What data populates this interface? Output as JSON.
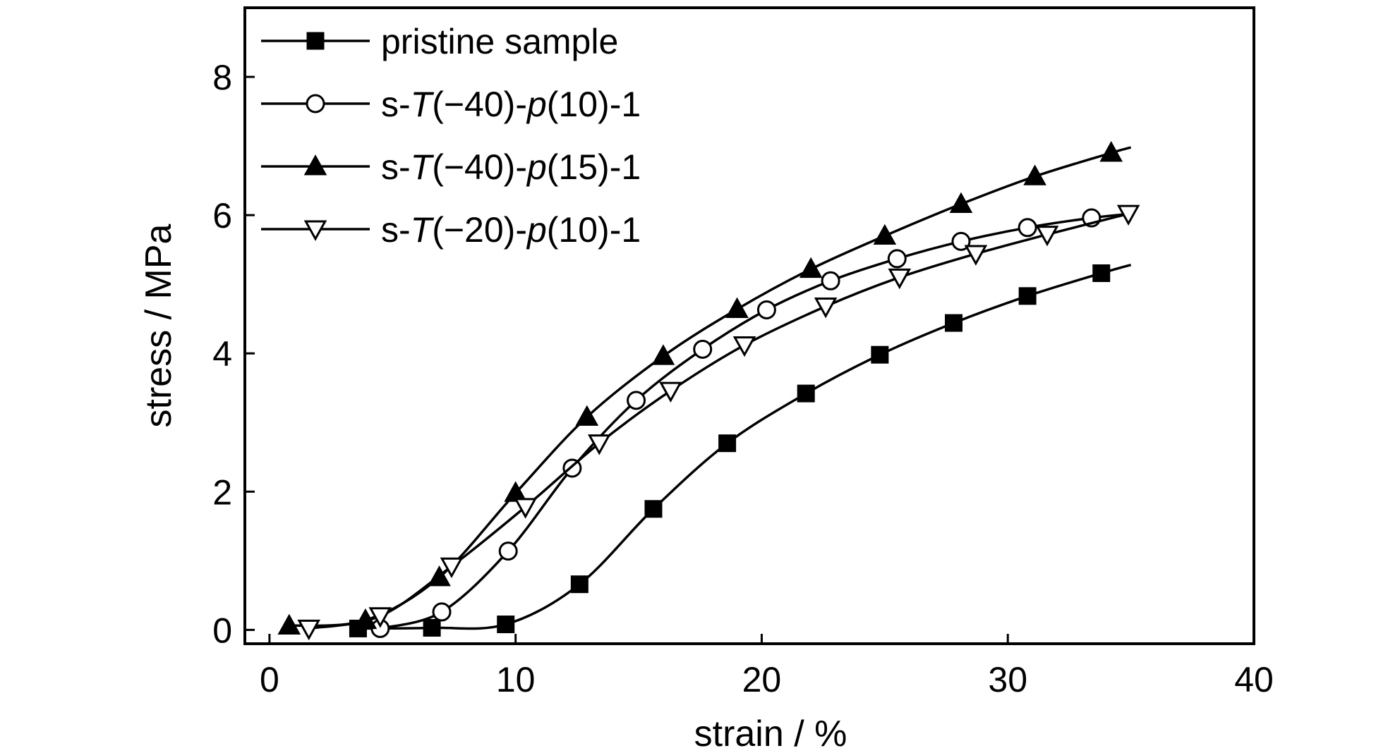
{
  "chart_data": {
    "type": "line",
    "title": "",
    "xlabel": "strain / %",
    "ylabel": "stress / MPa",
    "xlim": [
      -1,
      40
    ],
    "ylim": [
      -0.2,
      9.0
    ],
    "xticks": [
      0,
      10,
      20,
      30,
      40
    ],
    "yticks": [
      0,
      2,
      4,
      6,
      8
    ],
    "x_tick_labels": [
      "0",
      "10",
      "20",
      "30",
      "40"
    ],
    "y_tick_labels": [
      "0",
      "2",
      "4",
      "6",
      "8"
    ],
    "grid": false,
    "legend_position": "top-left",
    "series": [
      {
        "name": "pristine sample",
        "legend_parts": [
          {
            "text": "pristine sample",
            "italic": false
          }
        ],
        "marker": "square-filled",
        "x": [
          3.6,
          6.6,
          9.6,
          12.6,
          15.6,
          18.6,
          21.8,
          24.8,
          27.8,
          30.8,
          33.8,
          35.0
        ],
        "y": [
          0.02,
          0.03,
          0.08,
          0.66,
          1.75,
          2.7,
          3.42,
          3.98,
          4.44,
          4.83,
          5.16,
          5.28
        ],
        "marker_x": [
          3.6,
          6.6,
          9.6,
          12.6,
          15.6,
          18.6,
          21.8,
          24.8,
          27.8,
          30.8,
          33.8
        ],
        "marker_y": [
          0.02,
          0.03,
          0.08,
          0.66,
          1.75,
          2.7,
          3.42,
          3.98,
          4.44,
          4.83,
          5.16
        ]
      },
      {
        "name": "s-T(−40)-p(10)-1",
        "legend_parts": [
          {
            "text": "s-",
            "italic": false
          },
          {
            "text": "T",
            "italic": true
          },
          {
            "text": "(−40)-",
            "italic": false
          },
          {
            "text": "p",
            "italic": true
          },
          {
            "text": "(10)-1",
            "italic": false
          }
        ],
        "marker": "circle-open",
        "x": [
          4.5,
          7.0,
          9.7,
          12.3,
          14.9,
          17.6,
          20.2,
          22.8,
          25.5,
          28.1,
          30.8,
          33.4,
          35.0
        ],
        "y": [
          0.02,
          0.26,
          1.14,
          2.34,
          3.32,
          4.06,
          4.63,
          5.05,
          5.37,
          5.62,
          5.82,
          5.96,
          6.02
        ],
        "marker_x": [
          4.5,
          7.0,
          9.7,
          12.3,
          14.9,
          17.6,
          20.2,
          22.8,
          25.5,
          28.1,
          30.8,
          33.4
        ],
        "marker_y": [
          0.02,
          0.26,
          1.14,
          2.34,
          3.32,
          4.06,
          4.63,
          5.05,
          5.37,
          5.62,
          5.82,
          5.96
        ]
      },
      {
        "name": "s-T(−40)-p(15)-1",
        "legend_parts": [
          {
            "text": "s-",
            "italic": false
          },
          {
            "text": "T",
            "italic": true
          },
          {
            "text": "(−40)-",
            "italic": false
          },
          {
            "text": "p",
            "italic": true
          },
          {
            "text": "(15)-1",
            "italic": false
          }
        ],
        "marker": "triangle-up-filled",
        "x": [
          0.8,
          3.9,
          6.9,
          10.0,
          12.9,
          16.0,
          19.0,
          22.0,
          25.0,
          28.1,
          31.1,
          34.2,
          35.0
        ],
        "y": [
          0.06,
          0.14,
          0.76,
          1.98,
          3.08,
          3.96,
          4.64,
          5.22,
          5.7,
          6.16,
          6.56,
          6.9,
          6.98
        ],
        "marker_x": [
          0.8,
          3.9,
          6.9,
          10.0,
          12.9,
          16.0,
          19.0,
          22.0,
          25.0,
          28.1,
          31.1,
          34.2
        ],
        "marker_y": [
          0.06,
          0.14,
          0.76,
          1.98,
          3.08,
          3.96,
          4.64,
          5.22,
          5.7,
          6.16,
          6.56,
          6.9
        ]
      },
      {
        "name": "s-T(−20)-p(10)-1",
        "legend_parts": [
          {
            "text": "s-",
            "italic": false
          },
          {
            "text": "T",
            "italic": true
          },
          {
            "text": "(−20)-",
            "italic": false
          },
          {
            "text": "p",
            "italic": true
          },
          {
            "text": "(10)-1",
            "italic": false
          }
        ],
        "marker": "triangle-down-open",
        "x": [
          1.6,
          4.5,
          7.4,
          10.4,
          13.4,
          16.3,
          19.3,
          22.6,
          25.6,
          28.7,
          31.6,
          34.9
        ],
        "y": [
          0.02,
          0.2,
          0.92,
          1.78,
          2.7,
          3.46,
          4.12,
          4.68,
          5.1,
          5.44,
          5.72,
          6.02
        ],
        "marker_x": [
          1.6,
          4.5,
          7.4,
          10.4,
          13.4,
          16.3,
          19.3,
          22.6,
          25.6,
          28.7,
          31.6,
          34.9
        ],
        "marker_y": [
          0.02,
          0.2,
          0.92,
          1.78,
          2.7,
          3.46,
          4.12,
          4.68,
          5.1,
          5.44,
          5.72,
          6.02
        ]
      }
    ]
  }
}
